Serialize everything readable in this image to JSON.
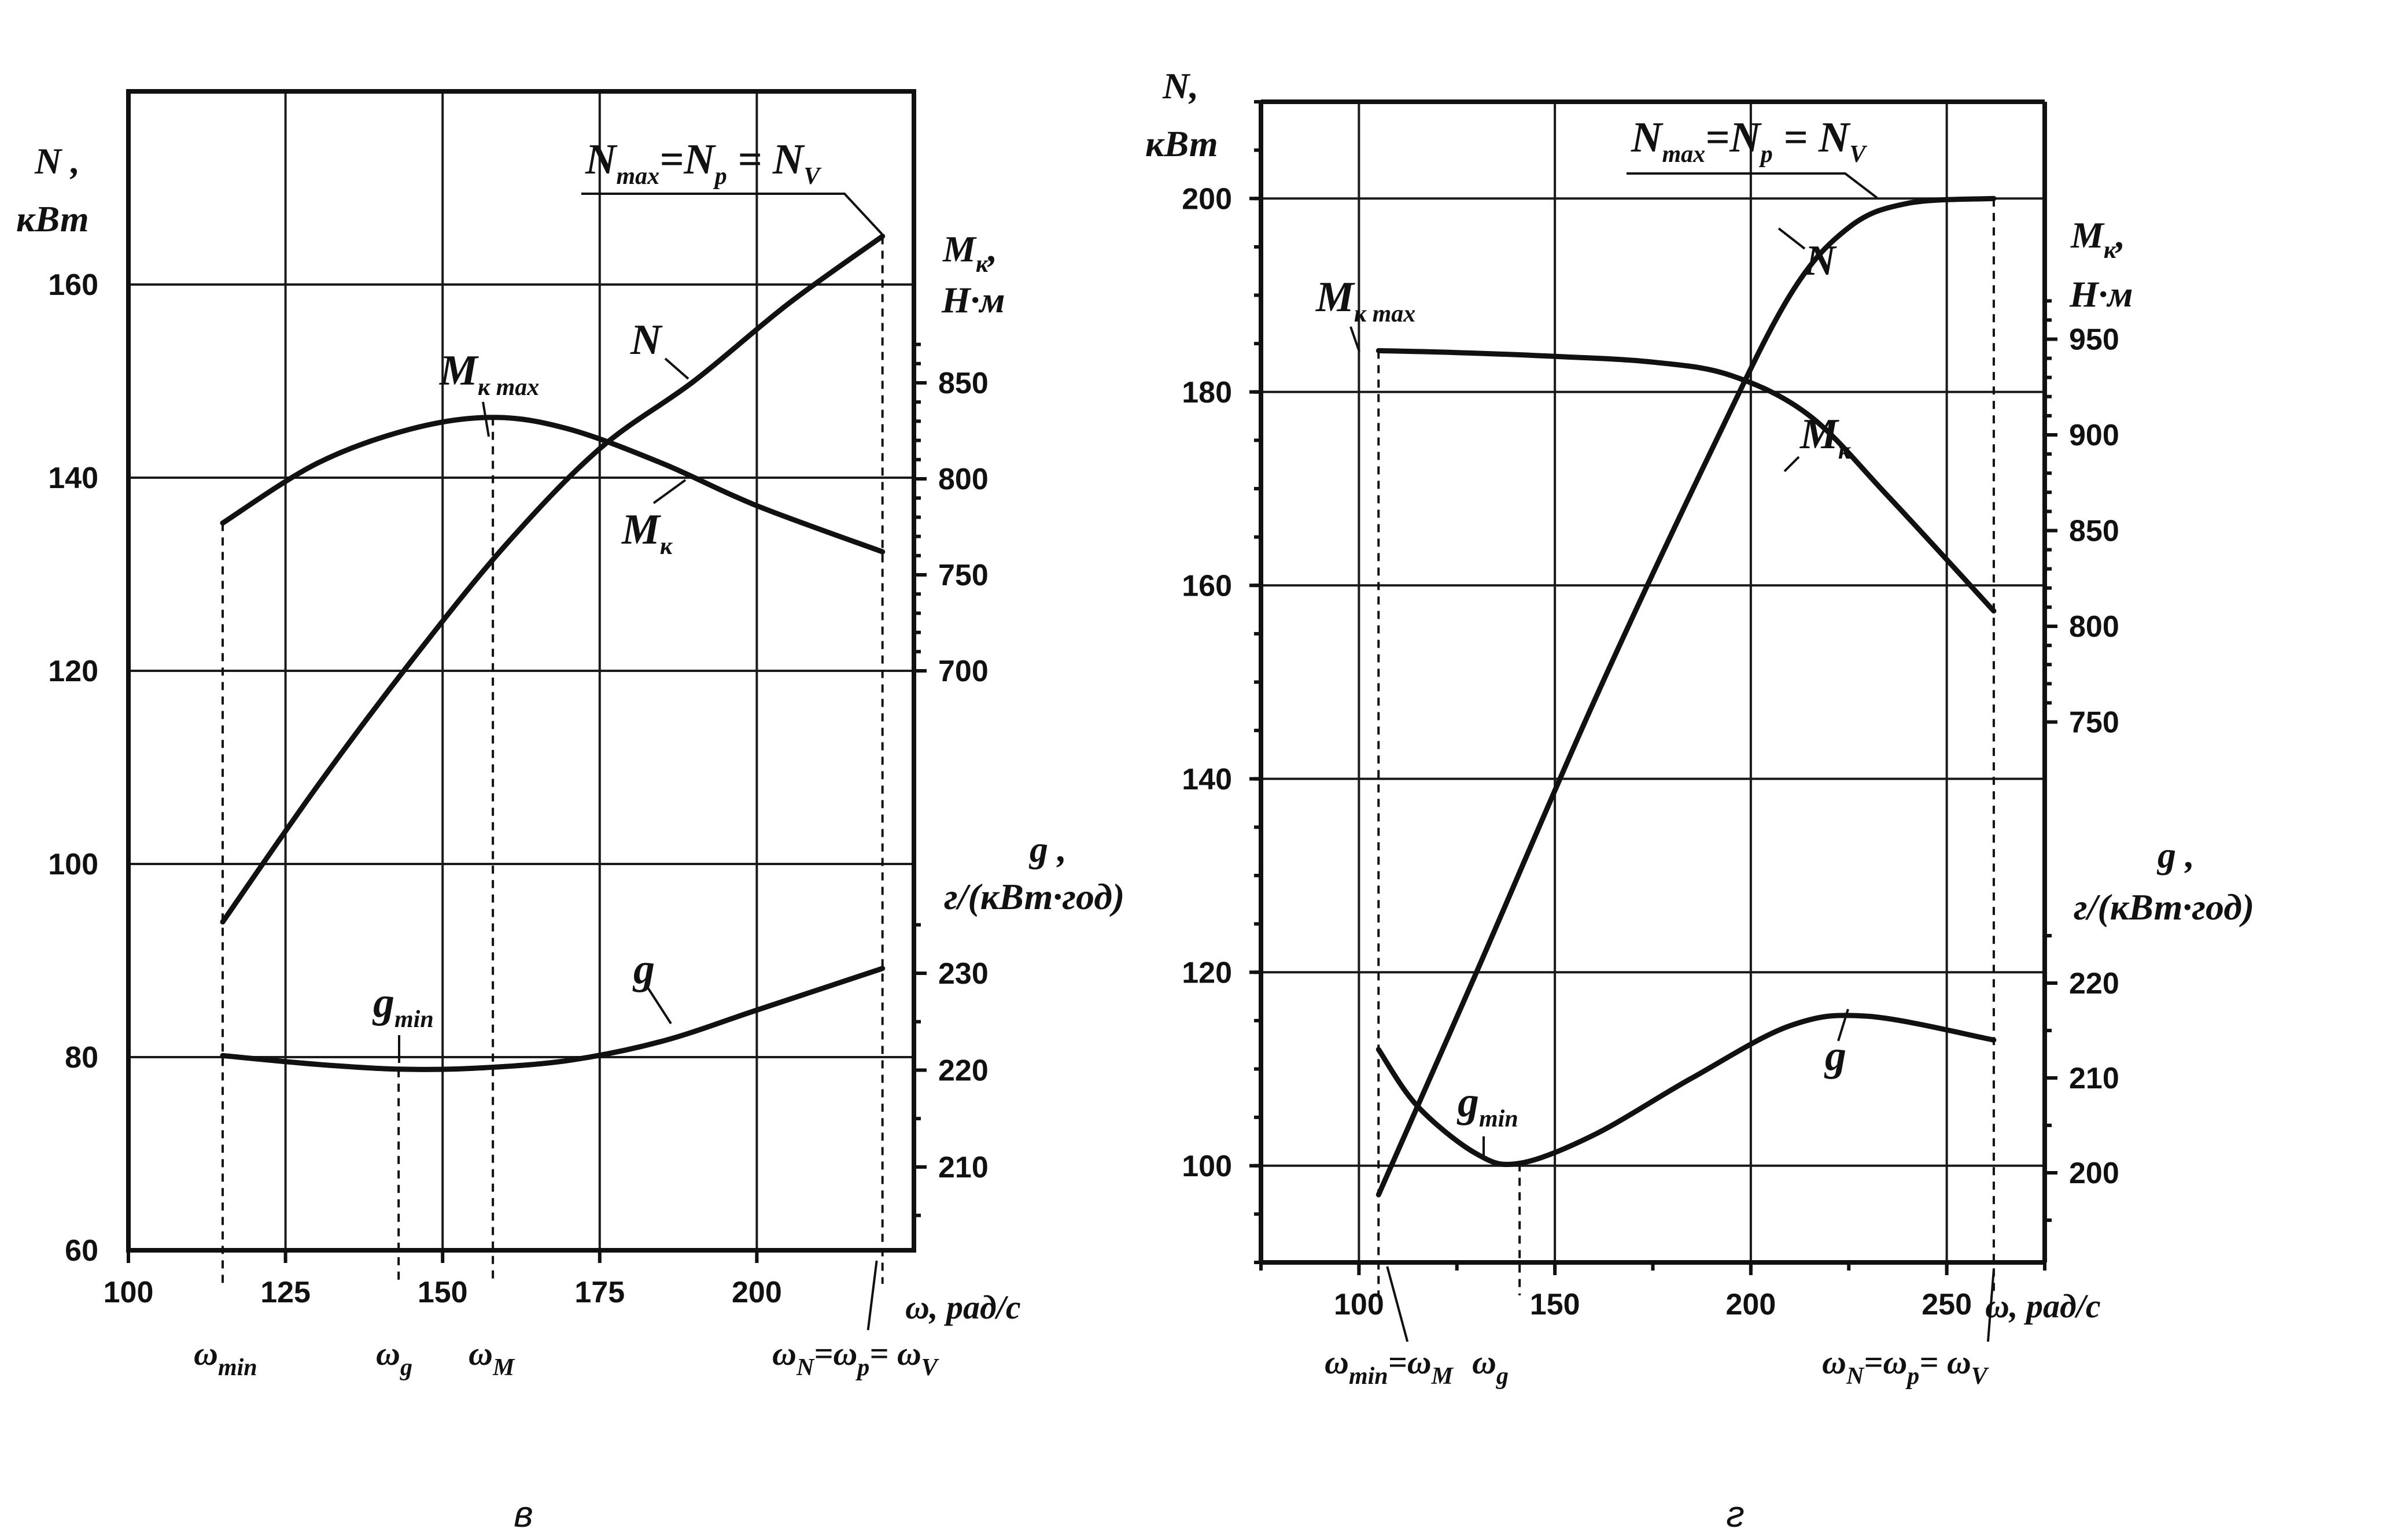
{
  "chart_data": [
    {
      "panel_label": "в",
      "type": "line",
      "xlabel": "ω, рад/с",
      "xlim": [
        100,
        225
      ],
      "xticks": [
        100,
        125,
        150,
        175,
        200
      ],
      "y_left": {
        "label_line1": "N ,",
        "label_line2": "кВт",
        "lim": [
          60,
          180
        ],
        "ticks": [
          60,
          80,
          100,
          120,
          140,
          160
        ]
      },
      "y_torque": {
        "label_line1": "M",
        "label_line1_sub": "к",
        "label_line2": "Н·м",
        "ticks": [
          700,
          750,
          800,
          850
        ]
      },
      "y_fuel": {
        "label_line1": "g ,",
        "label_line2": "г/(кВт·год)",
        "ticks": [
          210,
          220,
          230
        ]
      },
      "annotation_top": {
        "base": "N",
        "sub1": "max",
        "eq1": "=",
        "base2": "N",
        "sub2": "p",
        "eq2": "=",
        "base3": "N",
        "sub3": "V"
      },
      "series": [
        {
          "name": "N",
          "axis": "left",
          "x": [
            115,
            130,
            145,
            160,
            175,
            190,
            205,
            220
          ],
          "y": [
            94,
            108,
            121,
            133,
            143,
            150,
            158,
            165
          ]
        },
        {
          "name": "M",
          "name_sub": "к",
          "axis": "torque",
          "x": [
            115,
            130,
            145,
            158,
            170,
            185,
            200,
            220
          ],
          "y": [
            777,
            808,
            826,
            832,
            826,
            808,
            786,
            762
          ]
        },
        {
          "name": "g",
          "axis": "fuel",
          "x": [
            115,
            130,
            143,
            155,
            170,
            185,
            200,
            220
          ],
          "y": [
            221.5,
            220.6,
            220.1,
            220.2,
            221.0,
            223.0,
            226.2,
            230.5
          ]
        }
      ],
      "markers": [
        {
          "label": "M",
          "sub": "к max"
        },
        {
          "label": "g",
          "sub": "min"
        }
      ],
      "omega_labels": [
        {
          "label": "ω",
          "sub": "min"
        },
        {
          "label": "ω",
          "sub": "g"
        },
        {
          "label": "ω",
          "sub": "M"
        },
        {
          "label": "ω",
          "sub": "N",
          "eq": "=ω",
          "sub2": "p",
          "eq2": "= ω",
          "sub3": "V"
        }
      ]
    },
    {
      "panel_label": "г",
      "type": "line",
      "xlabel": "ω, рад/с",
      "xlim": [
        75,
        275
      ],
      "xticks": [
        100,
        150,
        200,
        250
      ],
      "y_left": {
        "label_line1": "N,",
        "label_line2": "кВт",
        "lim": [
          90,
          210
        ],
        "ticks": [
          100,
          120,
          140,
          160,
          180,
          200
        ]
      },
      "y_torque": {
        "label_line1": "M",
        "label_line1_sub": "к",
        "label_line1_end": ",",
        "label_line2": "Н·м",
        "ticks": [
          750,
          800,
          850,
          900,
          950
        ]
      },
      "y_fuel": {
        "label_line1": "g ,",
        "label_line2": "г/(кВт·год)",
        "ticks": [
          200,
          210,
          220
        ]
      },
      "annotation_top": {
        "base": "N",
        "sub1": "max",
        "eq1": "=",
        "base2": "N",
        "sub2": "p",
        "eq2": "=",
        "base3": "N",
        "sub3": "V"
      },
      "series": [
        {
          "name": "N",
          "axis": "left",
          "x": [
            105,
            130,
            160,
            190,
            210,
            225,
            240,
            262
          ],
          "y": [
            97,
            120,
            148,
            174,
            190,
            197,
            199.5,
            200
          ]
        },
        {
          "name": "M",
          "name_sub": "к",
          "axis": "torque",
          "x": [
            105,
            125,
            150,
            175,
            195,
            215,
            235,
            262
          ],
          "y": [
            944,
            943,
            941,
            938,
            931,
            910,
            868,
            808
          ]
        },
        {
          "name": "g",
          "axis": "fuel",
          "x": [
            105,
            115,
            130,
            141,
            160,
            185,
            210,
            230,
            262
          ],
          "y": [
            213,
            207,
            202,
            201,
            204,
            210,
            215.5,
            216.5,
            214
          ]
        }
      ],
      "markers": [
        {
          "label": "M",
          "sub": "к max"
        },
        {
          "label": "g",
          "sub": "min"
        }
      ],
      "omega_labels": [
        {
          "label": "ω",
          "sub": "min",
          "eq": "=ω",
          "sub2": "M"
        },
        {
          "label": "ω",
          "sub": "g"
        },
        {
          "label": "ω",
          "sub": "N",
          "eq": "=ω",
          "sub2": "p",
          "eq2": "= ω",
          "sub3": "V"
        }
      ]
    }
  ]
}
